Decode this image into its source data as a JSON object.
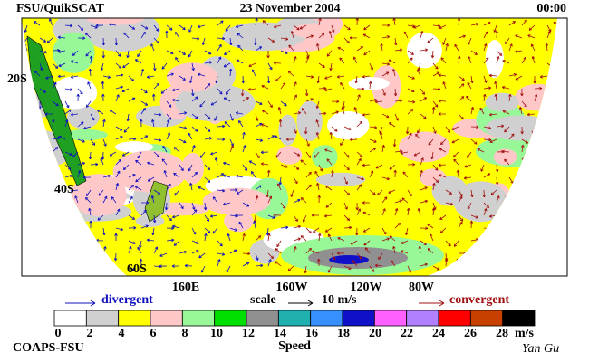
{
  "header": {
    "left": "FSU/QuikSCAT",
    "center": "23 November 2004",
    "right": "00:00"
  },
  "map": {
    "lat_labels": [
      "20S",
      "40S",
      "60S"
    ],
    "lon_labels": [
      "160E",
      "160W",
      "120W",
      "80W"
    ]
  },
  "legend": {
    "divergent": "divergent",
    "scale": "scale",
    "scale_value": "10 m/s",
    "convergent": "convergent",
    "divergent_color": "#1010c0",
    "convergent_color": "#a01010"
  },
  "colorbar": {
    "ticks": [
      0,
      2,
      4,
      6,
      8,
      10,
      12,
      14,
      16,
      18,
      20,
      22,
      24,
      26,
      28
    ],
    "unit": "m/s",
    "label": "Speed",
    "colors": [
      "#ffffff",
      "#d0d0d0",
      "#ffff00",
      "#ffc8c8",
      "#98f898",
      "#00e000",
      "#909090",
      "#20b0b0",
      "#3890ff",
      "#1010c8",
      "#ff60ff",
      "#b080ff",
      "#ff0000",
      "#c84000",
      "#000000"
    ]
  },
  "footer": {
    "left": "COAPS-FSU",
    "signature": "Yan Gu"
  }
}
